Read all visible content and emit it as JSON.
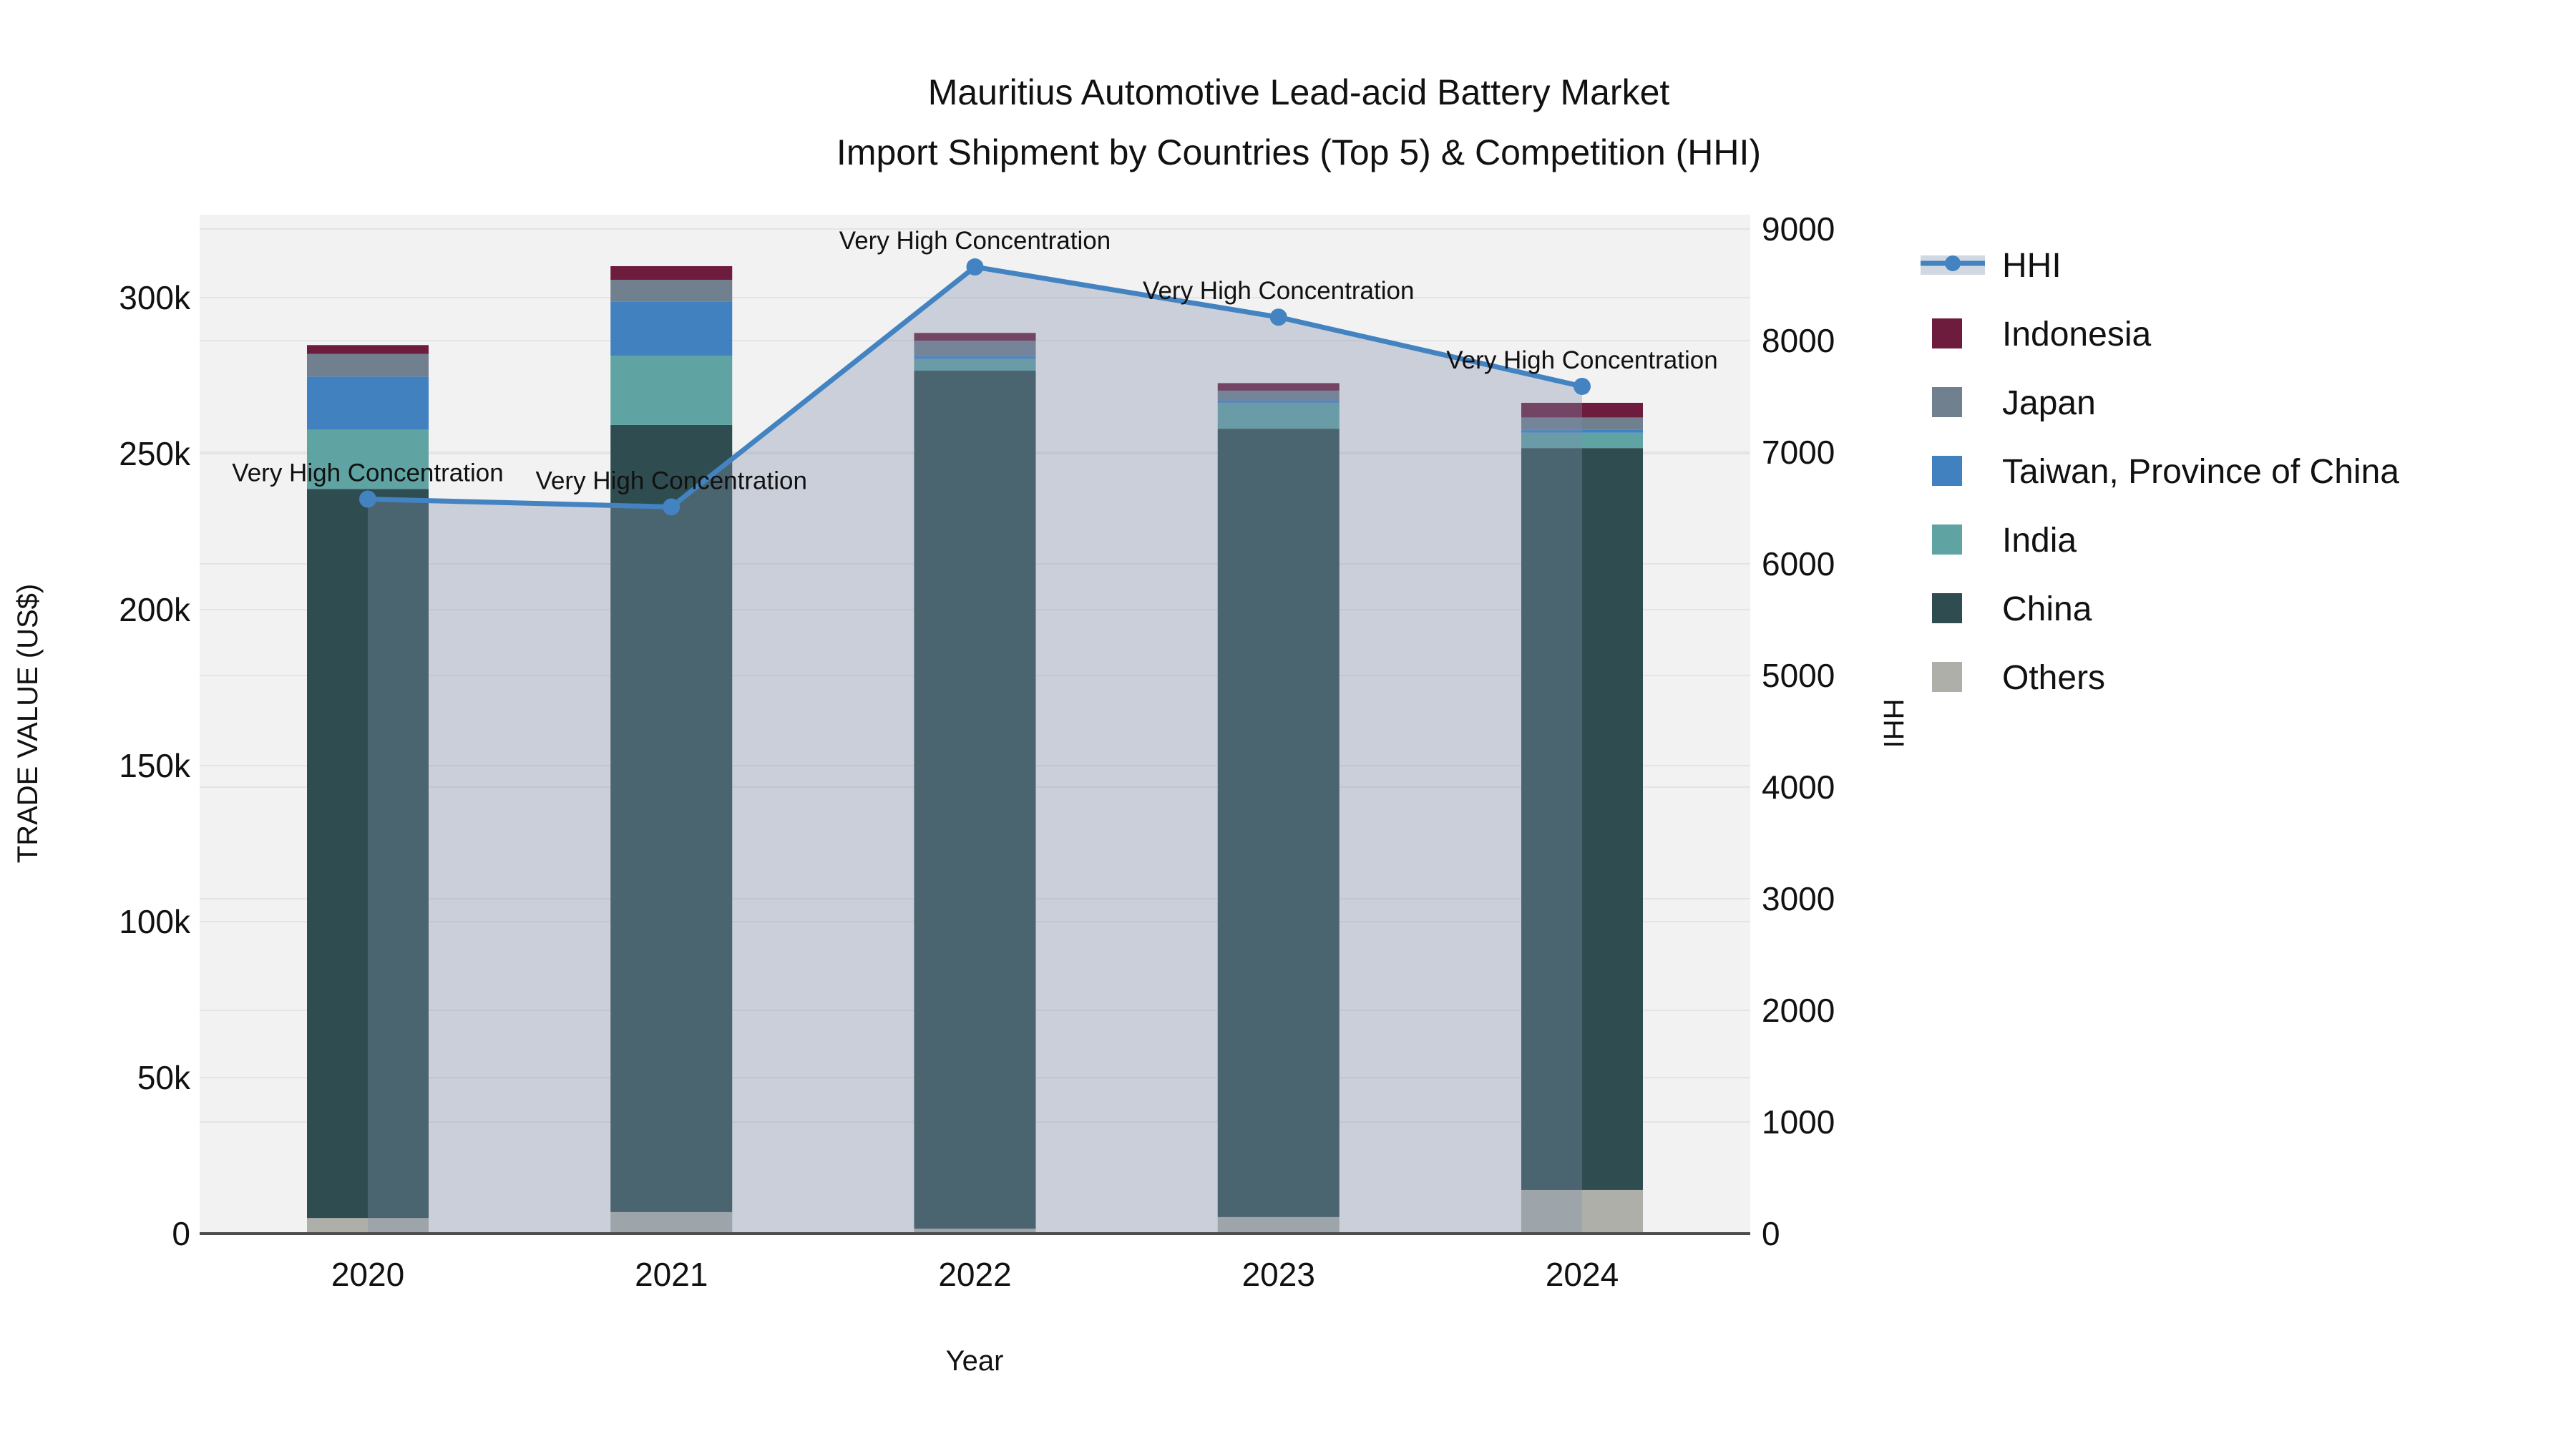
{
  "title": {
    "line1": "Mauritius Automotive Lead-acid Battery Market",
    "line2": "Import Shipment by Countries (Top 5) & Competition (HHI)"
  },
  "colors": {
    "plot_bg": "#f3f2f2",
    "grid": "#e5e4e4",
    "axis_line": "#4d4d4d",
    "text": "#111111",
    "hhi_line": "#4383c1",
    "hhi_area_fill": "rgba(125,143,171,0.35)",
    "legend_hhi_band": "#d1d8e2"
  },
  "chart_data": {
    "type": "bar",
    "subtype": "stacked bars with secondary-axis line (combo)",
    "categories": [
      "2020",
      "2021",
      "2022",
      "2023",
      "2024"
    ],
    "xlabel": "Year",
    "bar_series": [
      {
        "name": "Others",
        "color": "#aeafa9",
        "values": [
          5000,
          6900,
          1600,
          5300,
          14000
        ]
      },
      {
        "name": "China",
        "color": "#2f4d51",
        "values": [
          233700,
          252300,
          275000,
          252700,
          237800
        ]
      },
      {
        "name": "India",
        "color": "#5fa3a3",
        "values": [
          19000,
          22200,
          3700,
          8300,
          4900
        ]
      },
      {
        "name": "Taiwan, Province of China",
        "color": "#4281c0",
        "values": [
          17000,
          17400,
          1100,
          800,
          900
        ]
      },
      {
        "name": "Japan",
        "color": "#70808f",
        "values": [
          7300,
          6900,
          4800,
          3100,
          4000
        ]
      },
      {
        "name": "Indonesia",
        "color": "#6d1c3e",
        "values": [
          2800,
          4400,
          2500,
          2400,
          4700
        ]
      }
    ],
    "line_series": {
      "name": "HHI",
      "axis": "y2",
      "color": "#4383c1",
      "area_fill": "rgba(125,143,171,0.35)",
      "values": [
        6580,
        6510,
        8660,
        8210,
        7590
      ],
      "annotations": [
        {
          "x": "2020",
          "text": "Very High Concentration"
        },
        {
          "x": "2021",
          "text": "Very High Concentration"
        },
        {
          "x": "2022",
          "text": "Very High Concentration"
        },
        {
          "x": "2023",
          "text": "Very High Concentration"
        },
        {
          "x": "2024",
          "text": "Very High Concentration"
        }
      ]
    },
    "y1": {
      "label": "TRADE VALUE (US$)",
      "ticks": [
        0,
        50000,
        100000,
        150000,
        200000,
        250000,
        300000
      ],
      "tick_labels": [
        "0",
        "50k",
        "100k",
        "150k",
        "200k",
        "250k",
        "300k"
      ],
      "ylim": [
        0,
        327000
      ]
    },
    "y2": {
      "label": "HHI",
      "ticks": [
        0,
        1000,
        2000,
        3000,
        4000,
        5000,
        6000,
        7000,
        8000,
        9000
      ],
      "tick_labels": [
        "0",
        "1000",
        "2000",
        "3000",
        "4000",
        "5000",
        "6000",
        "7000",
        "8000",
        "9000"
      ],
      "ylim": [
        0,
        9200
      ]
    },
    "grid": true,
    "legend_position": "right",
    "legend": [
      {
        "label": "HHI",
        "type": "line",
        "color": "#4383c1"
      },
      {
        "label": "Indonesia",
        "type": "square",
        "color": "#6d1c3e"
      },
      {
        "label": "Japan",
        "type": "square",
        "color": "#70808f"
      },
      {
        "label": "Taiwan, Province of China",
        "type": "square",
        "color": "#4281c0"
      },
      {
        "label": "India",
        "type": "square",
        "color": "#5fa3a3"
      },
      {
        "label": "China",
        "type": "square",
        "color": "#2f4d51"
      },
      {
        "label": "Others",
        "type": "square",
        "color": "#aeafa9"
      }
    ]
  }
}
